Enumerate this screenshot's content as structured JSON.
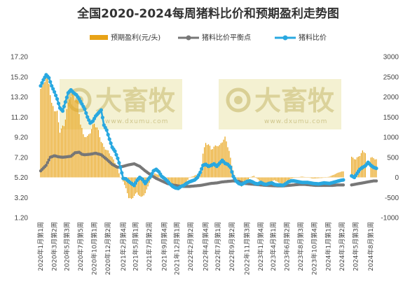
{
  "chart_data": {
    "type": "bar+line",
    "title": "全国2020-2024每周猪料比价和预期盈利走势图",
    "legend": {
      "placement": "top",
      "entries": [
        "预期盈利(元/头)",
        "猪料比价平衡点",
        "猪料比价"
      ]
    },
    "y_left": {
      "range": [
        1.2,
        17.2
      ],
      "ticks": [
        "17.20",
        "15.20",
        "13.20",
        "11.20",
        "9.20",
        "7.20",
        "5.20",
        "3.20",
        "1.20"
      ]
    },
    "y_right": {
      "range": [
        -1000,
        3000
      ],
      "ticks": [
        "3000",
        "2500",
        "2000",
        "1500",
        "1000",
        "500",
        "0",
        "-500",
        "-1000"
      ]
    },
    "x_tick_labels": [
      "2020年1月第1周",
      "2020年3月第2周",
      "2020年5月第3周",
      "2020年7月第5周",
      "2020年10月第1周",
      "2020年12月第2周",
      "2021年2月第4周",
      "2021年5月第1周",
      "2021年7月第2周",
      "2021年9月第4周",
      "2021年12月第1周",
      "2022年2月第2周",
      "2022年4月第4周",
      "2022年7月第1周",
      "2022年9月第2周",
      "2022年11月第3周",
      "2023年1月第4周",
      "2023年4月第1周",
      "2023年6月第2周",
      "2023年8月第3周",
      "2023年10月第4周",
      "2024年1月第1周",
      "2024年3月第2周",
      "2024年5月第3周",
      "2024年8月第1周"
    ],
    "x_tick_weeks": [
      0,
      10,
      19,
      29,
      39,
      49,
      60,
      69,
      79,
      90,
      99,
      109,
      120,
      129,
      139,
      150,
      160,
      169,
      179,
      189,
      199,
      209,
      219,
      229,
      240
    ],
    "week_count": 245,
    "series": [
      {
        "name": "预期盈利(元/头)",
        "kind": "bar",
        "axis": "right",
        "color": "#e8a317",
        "gaps": [
          [
            221,
            225
          ],
          [
            237,
            239
          ]
        ],
        "keypoints": [
          [
            0,
            2200
          ],
          [
            3,
            2450
          ],
          [
            6,
            2380
          ],
          [
            8,
            1800
          ],
          [
            12,
            1600
          ],
          [
            14,
            1150
          ],
          [
            17,
            1300
          ],
          [
            19,
            1650
          ],
          [
            21,
            2000
          ],
          [
            24,
            2050
          ],
          [
            27,
            1850
          ],
          [
            29,
            1350
          ],
          [
            31,
            1050
          ],
          [
            34,
            1000
          ],
          [
            37,
            1200
          ],
          [
            39,
            1350
          ],
          [
            42,
            1150
          ],
          [
            44,
            900
          ],
          [
            46,
            750
          ],
          [
            49,
            650
          ],
          [
            52,
            500
          ],
          [
            55,
            300
          ],
          [
            58,
            0
          ],
          [
            60,
            -100
          ],
          [
            62,
            -280
          ],
          [
            64,
            -500
          ],
          [
            66,
            -550
          ],
          [
            68,
            -450
          ],
          [
            70,
            -380
          ],
          [
            73,
            -500
          ],
          [
            76,
            -400
          ],
          [
            78,
            -220
          ],
          [
            80,
            -50
          ],
          [
            83,
            100
          ],
          [
            86,
            60
          ],
          [
            89,
            0
          ],
          [
            92,
            -80
          ],
          [
            96,
            -220
          ],
          [
            100,
            -300
          ],
          [
            103,
            -200
          ],
          [
            106,
            -120
          ],
          [
            108,
            0
          ],
          [
            111,
            30
          ],
          [
            114,
            80
          ],
          [
            117,
            150
          ],
          [
            118,
            600
          ],
          [
            120,
            850
          ],
          [
            122,
            820
          ],
          [
            124,
            700
          ],
          [
            126,
            750
          ],
          [
            128,
            800
          ],
          [
            130,
            780
          ],
          [
            132,
            900
          ],
          [
            134,
            980
          ],
          [
            135,
            900
          ],
          [
            137,
            650
          ],
          [
            139,
            300
          ],
          [
            141,
            50
          ],
          [
            143,
            -100
          ],
          [
            146,
            -230
          ],
          [
            149,
            -150
          ],
          [
            152,
            0
          ],
          [
            155,
            40
          ],
          [
            158,
            -50
          ],
          [
            161,
            -150
          ],
          [
            164,
            -180
          ],
          [
            167,
            -110
          ],
          [
            170,
            -70
          ],
          [
            173,
            -130
          ],
          [
            176,
            -170
          ],
          [
            179,
            -100
          ],
          [
            182,
            -30
          ],
          [
            186,
            0
          ],
          [
            190,
            20
          ],
          [
            194,
            0
          ],
          [
            198,
            -30
          ],
          [
            202,
            -20
          ],
          [
            206,
            -10
          ],
          [
            210,
            20
          ],
          [
            214,
            80
          ],
          [
            217,
            130
          ],
          [
            220,
            150
          ],
          [
            226,
            500
          ],
          [
            229,
            450
          ],
          [
            232,
            550
          ],
          [
            234,
            650
          ],
          [
            236,
            620
          ],
          [
            240,
            500
          ],
          [
            244,
            450
          ]
        ]
      },
      {
        "name": "猪料比价平衡点",
        "kind": "line",
        "axis": "left",
        "color": "#777777",
        "gaps": [
          [
            221,
            225
          ]
        ],
        "keypoints": [
          [
            0,
            5.85
          ],
          [
            4,
            6.4
          ],
          [
            7,
            7.2
          ],
          [
            10,
            7.35
          ],
          [
            13,
            7.25
          ],
          [
            16,
            7.2
          ],
          [
            19,
            7.25
          ],
          [
            22,
            7.3
          ],
          [
            25,
            7.65
          ],
          [
            28,
            7.7
          ],
          [
            30,
            7.5
          ],
          [
            32,
            7.45
          ],
          [
            36,
            7.5
          ],
          [
            40,
            7.6
          ],
          [
            44,
            7.45
          ],
          [
            48,
            7.0
          ],
          [
            52,
            6.5
          ],
          [
            56,
            6.2
          ],
          [
            60,
            6.3
          ],
          [
            64,
            6.45
          ],
          [
            68,
            6.55
          ],
          [
            72,
            6.3
          ],
          [
            76,
            5.85
          ],
          [
            80,
            5.45
          ],
          [
            84,
            5.1
          ],
          [
            88,
            4.85
          ],
          [
            92,
            4.6
          ],
          [
            96,
            4.45
          ],
          [
            100,
            4.35
          ],
          [
            104,
            4.3
          ],
          [
            108,
            4.3
          ],
          [
            112,
            4.35
          ],
          [
            116,
            4.4
          ],
          [
            120,
            4.5
          ],
          [
            124,
            4.6
          ],
          [
            128,
            4.65
          ],
          [
            132,
            4.75
          ],
          [
            136,
            4.8
          ],
          [
            140,
            4.85
          ],
          [
            144,
            4.8
          ],
          [
            148,
            4.6
          ],
          [
            152,
            4.55
          ],
          [
            156,
            4.5
          ],
          [
            160,
            4.45
          ],
          [
            164,
            4.4
          ],
          [
            168,
            4.38
          ],
          [
            172,
            4.35
          ],
          [
            176,
            4.35
          ],
          [
            180,
            4.4
          ],
          [
            184,
            4.45
          ],
          [
            188,
            4.5
          ],
          [
            192,
            4.5
          ],
          [
            196,
            4.45
          ],
          [
            200,
            4.4
          ],
          [
            204,
            4.4
          ],
          [
            208,
            4.4
          ],
          [
            212,
            4.4
          ],
          [
            216,
            4.45
          ],
          [
            220,
            4.45
          ],
          [
            226,
            4.45
          ],
          [
            230,
            4.55
          ],
          [
            234,
            4.65
          ],
          [
            238,
            4.75
          ],
          [
            242,
            4.85
          ],
          [
            244,
            4.85
          ]
        ]
      },
      {
        "name": "猪料比价",
        "kind": "line",
        "axis": "left",
        "color": "#29a8e0",
        "gaps": [
          [
            221,
            225
          ]
        ],
        "keypoints": [
          [
            0,
            14.3
          ],
          [
            2,
            14.9
          ],
          [
            4,
            15.4
          ],
          [
            6,
            15.1
          ],
          [
            8,
            14.3
          ],
          [
            10,
            13.7
          ],
          [
            12,
            13.0
          ],
          [
            14,
            12.1
          ],
          [
            16,
            11.8
          ],
          [
            18,
            12.7
          ],
          [
            20,
            13.6
          ],
          [
            22,
            13.9
          ],
          [
            24,
            13.6
          ],
          [
            26,
            13.4
          ],
          [
            28,
            13.0
          ],
          [
            30,
            12.5
          ],
          [
            32,
            12.0
          ],
          [
            34,
            11.2
          ],
          [
            36,
            10.6
          ],
          [
            38,
            10.8
          ],
          [
            40,
            11.3
          ],
          [
            42,
            11.6
          ],
          [
            44,
            11.9
          ],
          [
            46,
            10.4
          ],
          [
            48,
            9.9
          ],
          [
            50,
            9.0
          ],
          [
            52,
            8.2
          ],
          [
            54,
            7.8
          ],
          [
            56,
            7.1
          ],
          [
            58,
            6.2
          ],
          [
            60,
            5.1
          ],
          [
            62,
            5.05
          ],
          [
            64,
            4.8
          ],
          [
            66,
            4.6
          ],
          [
            68,
            4.4
          ],
          [
            70,
            4.9
          ],
          [
            72,
            5.2
          ],
          [
            74,
            5.0
          ],
          [
            76,
            4.6
          ],
          [
            78,
            5.0
          ],
          [
            80,
            5.3
          ],
          [
            82,
            5.85
          ],
          [
            84,
            6.0
          ],
          [
            86,
            5.75
          ],
          [
            88,
            5.3
          ],
          [
            90,
            5.1
          ],
          [
            92,
            4.85
          ],
          [
            94,
            4.55
          ],
          [
            96,
            4.3
          ],
          [
            98,
            4.15
          ],
          [
            100,
            4.1
          ],
          [
            102,
            4.3
          ],
          [
            104,
            4.4
          ],
          [
            106,
            4.6
          ],
          [
            108,
            4.75
          ],
          [
            110,
            4.85
          ],
          [
            112,
            4.95
          ],
          [
            114,
            5.2
          ],
          [
            116,
            5.7
          ],
          [
            118,
            6.4
          ],
          [
            120,
            6.5
          ],
          [
            122,
            6.3
          ],
          [
            124,
            6.4
          ],
          [
            126,
            6.55
          ],
          [
            128,
            6.3
          ],
          [
            130,
            6.6
          ],
          [
            132,
            6.9
          ],
          [
            134,
            6.6
          ],
          [
            136,
            6.5
          ],
          [
            138,
            6.2
          ],
          [
            140,
            5.3
          ],
          [
            142,
            4.85
          ],
          [
            144,
            4.6
          ],
          [
            146,
            4.5
          ],
          [
            148,
            4.65
          ],
          [
            150,
            4.8
          ],
          [
            152,
            4.85
          ],
          [
            154,
            4.75
          ],
          [
            156,
            4.6
          ],
          [
            158,
            4.55
          ],
          [
            160,
            4.7
          ],
          [
            162,
            4.55
          ],
          [
            164,
            4.5
          ],
          [
            166,
            4.6
          ],
          [
            168,
            4.65
          ],
          [
            170,
            4.5
          ],
          [
            172,
            4.45
          ],
          [
            174,
            4.45
          ],
          [
            176,
            4.4
          ],
          [
            178,
            4.55
          ],
          [
            180,
            4.75
          ],
          [
            182,
            4.85
          ],
          [
            184,
            4.85
          ],
          [
            186,
            4.8
          ],
          [
            188,
            4.75
          ],
          [
            190,
            4.7
          ],
          [
            194,
            4.7
          ],
          [
            198,
            4.6
          ],
          [
            202,
            4.55
          ],
          [
            206,
            4.65
          ],
          [
            210,
            4.6
          ],
          [
            214,
            4.75
          ],
          [
            218,
            4.9
          ],
          [
            220,
            4.95
          ],
          [
            226,
            5.35
          ],
          [
            228,
            5.2
          ],
          [
            230,
            5.6
          ],
          [
            232,
            6.0
          ],
          [
            234,
            6.2
          ],
          [
            236,
            6.35
          ],
          [
            238,
            6.7
          ],
          [
            240,
            6.4
          ],
          [
            242,
            6.2
          ],
          [
            244,
            6.1
          ]
        ]
      }
    ]
  },
  "watermark": {
    "brand": "大畜牧",
    "site": "www.dxumu.com"
  }
}
